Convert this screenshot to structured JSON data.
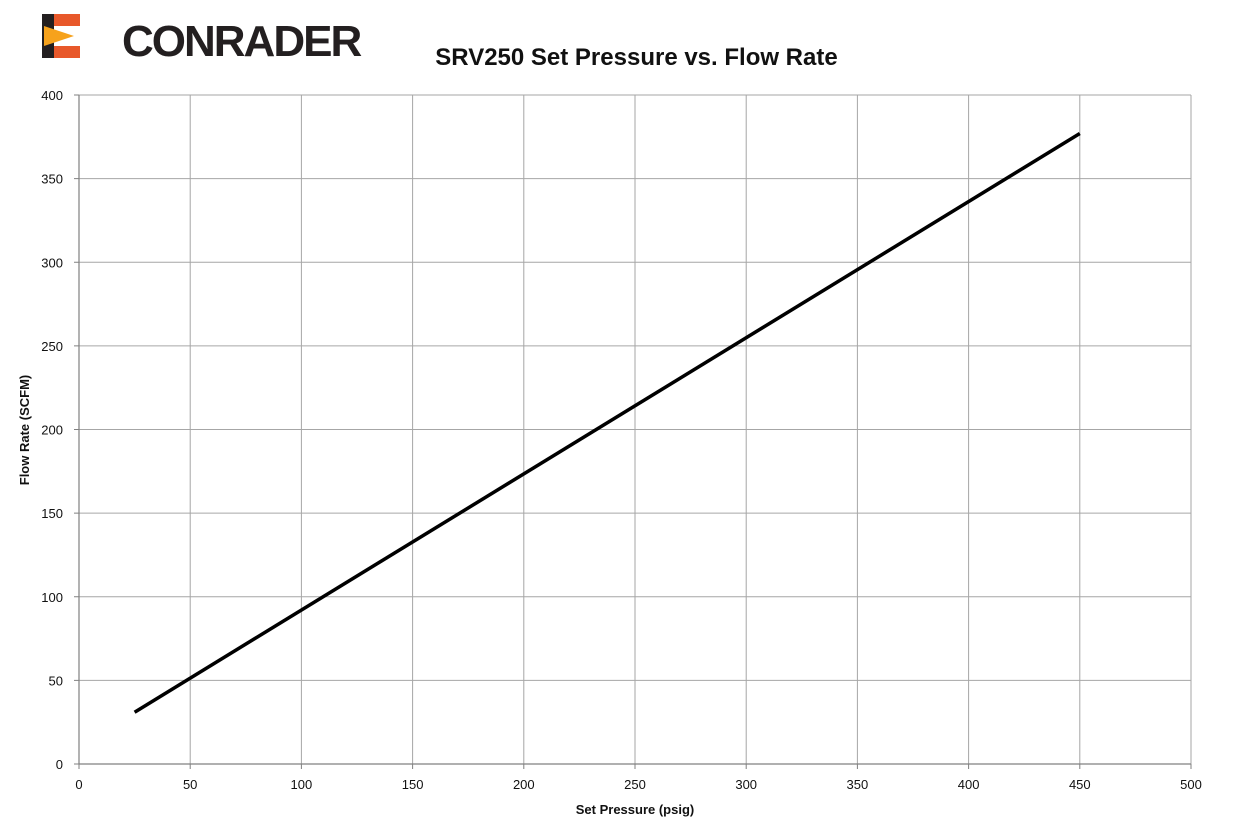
{
  "brand": {
    "logo_text": "CONRADER",
    "colors": {
      "orange": "#e8582a",
      "dark": "#231f20",
      "yellow": "#f6a21c"
    }
  },
  "chart_data": {
    "type": "line",
    "title": "SRV250 Set Pressure vs. Flow Rate",
    "xlabel": "Set Pressure (psig)",
    "ylabel": "Flow Rate (SCFM)",
    "xlim": [
      0,
      500
    ],
    "ylim": [
      0,
      400
    ],
    "xticks": [
      0,
      50,
      100,
      150,
      200,
      250,
      300,
      350,
      400,
      450,
      500
    ],
    "yticks": [
      0,
      50,
      100,
      150,
      200,
      250,
      300,
      350,
      400
    ],
    "grid": true,
    "series": [
      {
        "color": "#000000",
        "x": [
          25,
          450
        ],
        "y": [
          31,
          377
        ]
      }
    ]
  }
}
